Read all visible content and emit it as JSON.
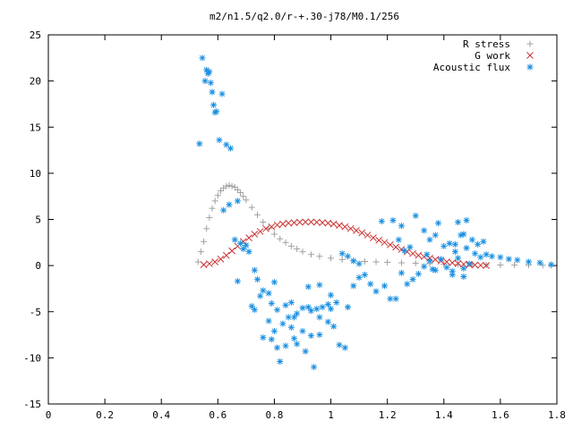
{
  "chart_data": {
    "type": "scatter",
    "title": "m2/n1.5/q2.0/r-+.30-j78/M0.1/256",
    "xlabel": "",
    "ylabel": "",
    "xlim": [
      0,
      1.8
    ],
    "ylim": [
      -15,
      25
    ],
    "x_ticks": [
      "0",
      "0.2",
      "0.4",
      "0.6",
      "0.8",
      "1",
      "1.2",
      "1.4",
      "1.6",
      "1.8"
    ],
    "y_ticks": [
      "-15",
      "-10",
      "-5",
      "0",
      "5",
      "10",
      "15",
      "20",
      "25"
    ],
    "grid": false,
    "legend_position": "top-right",
    "series": [
      {
        "name": "R stress",
        "marker": "plus",
        "color": "#a0a0a0",
        "points": [
          [
            0.53,
            0.4
          ],
          [
            0.54,
            1.5
          ],
          [
            0.55,
            2.6
          ],
          [
            0.56,
            4.0
          ],
          [
            0.57,
            5.2
          ],
          [
            0.58,
            6.2
          ],
          [
            0.59,
            7.0
          ],
          [
            0.6,
            7.6
          ],
          [
            0.61,
            8.1
          ],
          [
            0.62,
            8.4
          ],
          [
            0.63,
            8.6
          ],
          [
            0.64,
            8.7
          ],
          [
            0.65,
            8.6
          ],
          [
            0.66,
            8.5
          ],
          [
            0.67,
            8.2
          ],
          [
            0.68,
            7.9
          ],
          [
            0.69,
            7.5
          ],
          [
            0.7,
            7.1
          ],
          [
            0.72,
            6.3
          ],
          [
            0.74,
            5.5
          ],
          [
            0.76,
            4.7
          ],
          [
            0.78,
            4.0
          ],
          [
            0.8,
            3.4
          ],
          [
            0.82,
            2.9
          ],
          [
            0.84,
            2.5
          ],
          [
            0.86,
            2.1
          ],
          [
            0.88,
            1.8
          ],
          [
            0.9,
            1.5
          ],
          [
            0.93,
            1.2
          ],
          [
            0.96,
            1.0
          ],
          [
            1.0,
            0.8
          ],
          [
            1.04,
            0.65
          ],
          [
            1.08,
            0.55
          ],
          [
            1.12,
            0.45
          ],
          [
            1.16,
            0.4
          ],
          [
            1.2,
            0.35
          ],
          [
            1.25,
            0.3
          ],
          [
            1.3,
            0.25
          ],
          [
            1.35,
            0.2
          ],
          [
            1.4,
            0.15
          ],
          [
            1.45,
            0.12
          ],
          [
            1.5,
            0.1
          ],
          [
            1.55,
            0.08
          ],
          [
            1.6,
            0.06
          ],
          [
            1.65,
            0.05
          ],
          [
            1.7,
            0.04
          ],
          [
            1.75,
            0.03
          ],
          [
            1.78,
            0.02
          ]
        ]
      },
      {
        "name": "G work",
        "marker": "cross",
        "color": "#cc3333",
        "points": [
          [
            0.55,
            0.1
          ],
          [
            0.57,
            0.2
          ],
          [
            0.59,
            0.4
          ],
          [
            0.61,
            0.7
          ],
          [
            0.63,
            1.1
          ],
          [
            0.65,
            1.6
          ],
          [
            0.67,
            2.1
          ],
          [
            0.69,
            2.6
          ],
          [
            0.71,
            3.0
          ],
          [
            0.73,
            3.4
          ],
          [
            0.75,
            3.7
          ],
          [
            0.77,
            4.0
          ],
          [
            0.79,
            4.2
          ],
          [
            0.81,
            4.4
          ],
          [
            0.83,
            4.5
          ],
          [
            0.85,
            4.6
          ],
          [
            0.87,
            4.65
          ],
          [
            0.89,
            4.7
          ],
          [
            0.91,
            4.72
          ],
          [
            0.93,
            4.72
          ],
          [
            0.95,
            4.7
          ],
          [
            0.97,
            4.65
          ],
          [
            0.99,
            4.6
          ],
          [
            1.01,
            4.5
          ],
          [
            1.03,
            4.35
          ],
          [
            1.05,
            4.2
          ],
          [
            1.07,
            4.0
          ],
          [
            1.09,
            3.8
          ],
          [
            1.11,
            3.55
          ],
          [
            1.13,
            3.3
          ],
          [
            1.15,
            3.0
          ],
          [
            1.17,
            2.75
          ],
          [
            1.19,
            2.5
          ],
          [
            1.21,
            2.25
          ],
          [
            1.23,
            2.0
          ],
          [
            1.25,
            1.75
          ],
          [
            1.27,
            1.5
          ],
          [
            1.29,
            1.3
          ],
          [
            1.31,
            1.1
          ],
          [
            1.33,
            0.95
          ],
          [
            1.35,
            0.8
          ],
          [
            1.37,
            0.65
          ],
          [
            1.39,
            0.5
          ],
          [
            1.41,
            0.4
          ],
          [
            1.43,
            0.3
          ],
          [
            1.45,
            0.22
          ],
          [
            1.47,
            0.15
          ],
          [
            1.49,
            0.1
          ],
          [
            1.51,
            0.06
          ],
          [
            1.53,
            0.03
          ],
          [
            1.55,
            0.01
          ]
        ]
      },
      {
        "name": "Acoustic flux",
        "marker": "star",
        "color": "#1a8fe0",
        "points": [
          [
            0.535,
            13.2
          ],
          [
            0.545,
            22.5
          ],
          [
            0.555,
            20.0
          ],
          [
            0.56,
            21.2
          ],
          [
            0.565,
            20.8
          ],
          [
            0.57,
            21.0
          ],
          [
            0.575,
            19.8
          ],
          [
            0.58,
            18.8
          ],
          [
            0.585,
            17.4
          ],
          [
            0.59,
            16.6
          ],
          [
            0.595,
            16.7
          ],
          [
            0.605,
            13.6
          ],
          [
            0.615,
            18.6
          ],
          [
            0.63,
            13.1
          ],
          [
            0.645,
            12.7
          ],
          [
            0.62,
            6.0
          ],
          [
            0.64,
            6.6
          ],
          [
            0.67,
            7.0
          ],
          [
            0.66,
            2.8
          ],
          [
            0.68,
            2.4
          ],
          [
            0.69,
            1.8
          ],
          [
            0.7,
            2.2
          ],
          [
            0.71,
            1.5
          ],
          [
            0.73,
            -0.5
          ],
          [
            0.74,
            -1.5
          ],
          [
            0.67,
            -1.7
          ],
          [
            0.75,
            -3.3
          ],
          [
            0.76,
            -2.7
          ],
          [
            0.78,
            -3.0
          ],
          [
            0.72,
            -4.4
          ],
          [
            0.73,
            -4.8
          ],
          [
            0.8,
            -1.8
          ],
          [
            0.79,
            -4.1
          ],
          [
            0.81,
            -4.8
          ],
          [
            0.84,
            -4.3
          ],
          [
            0.86,
            -4.0
          ],
          [
            0.88,
            -5.2
          ],
          [
            0.78,
            -6.0
          ],
          [
            0.8,
            -7.1
          ],
          [
            0.83,
            -6.3
          ],
          [
            0.85,
            -5.6
          ],
          [
            0.86,
            -6.7
          ],
          [
            0.87,
            -5.6
          ],
          [
            0.9,
            -4.6
          ],
          [
            0.92,
            -4.5
          ],
          [
            0.93,
            -4.9
          ],
          [
            0.95,
            -4.7
          ],
          [
            0.97,
            -4.5
          ],
          [
            0.99,
            -4.2
          ],
          [
            1.0,
            -4.7
          ],
          [
            0.76,
            -7.8
          ],
          [
            0.79,
            -8.0
          ],
          [
            0.81,
            -8.9
          ],
          [
            0.84,
            -8.7
          ],
          [
            0.87,
            -7.9
          ],
          [
            0.9,
            -7.1
          ],
          [
            0.93,
            -7.6
          ],
          [
            0.96,
            -5.6
          ],
          [
            0.99,
            -6.1
          ],
          [
            1.01,
            -6.6
          ],
          [
            1.03,
            -8.6
          ],
          [
            0.82,
            -10.4
          ],
          [
            0.91,
            -9.3
          ],
          [
            0.94,
            -11.0
          ],
          [
            1.05,
            -8.9
          ],
          [
            0.96,
            -7.5
          ],
          [
            0.88,
            -8.5
          ],
          [
            0.92,
            -2.3
          ],
          [
            0.96,
            -2.1
          ],
          [
            1.0,
            -3.2
          ],
          [
            1.02,
            -4.0
          ],
          [
            1.06,
            -4.5
          ],
          [
            1.08,
            -2.2
          ],
          [
            1.1,
            -1.3
          ],
          [
            1.12,
            -1.0
          ],
          [
            1.04,
            1.3
          ],
          [
            1.06,
            1.0
          ],
          [
            1.08,
            0.5
          ],
          [
            1.1,
            0.2
          ],
          [
            1.14,
            -2.0
          ],
          [
            1.16,
            -2.8
          ],
          [
            1.19,
            -2.2
          ],
          [
            1.21,
            -3.6
          ],
          [
            1.23,
            -3.6
          ],
          [
            1.25,
            -0.8
          ],
          [
            1.27,
            -2.0
          ],
          [
            1.29,
            -1.5
          ],
          [
            1.31,
            -0.9
          ],
          [
            1.33,
            -0.1
          ],
          [
            1.35,
            0.5
          ],
          [
            1.37,
            -0.5
          ],
          [
            1.39,
            0.7
          ],
          [
            1.41,
            -0.2
          ],
          [
            1.43,
            -0.6
          ],
          [
            1.45,
            0.8
          ],
          [
            1.47,
            -0.3
          ],
          [
            1.49,
            0.2
          ],
          [
            1.51,
            1.3
          ],
          [
            1.53,
            0.9
          ],
          [
            1.55,
            1.2
          ],
          [
            1.57,
            1.0
          ],
          [
            1.6,
            0.9
          ],
          [
            1.63,
            0.7
          ],
          [
            1.66,
            0.6
          ],
          [
            1.7,
            0.4
          ],
          [
            1.74,
            0.3
          ],
          [
            1.78,
            0.1
          ],
          [
            1.18,
            4.8
          ],
          [
            1.22,
            4.9
          ],
          [
            1.25,
            4.3
          ],
          [
            1.3,
            5.4
          ],
          [
            1.33,
            3.8
          ],
          [
            1.35,
            2.8
          ],
          [
            1.37,
            3.3
          ],
          [
            1.4,
            2.1
          ],
          [
            1.42,
            2.4
          ],
          [
            1.44,
            2.3
          ],
          [
            1.38,
            4.6
          ],
          [
            1.45,
            4.7
          ],
          [
            1.48,
            4.9
          ],
          [
            1.47,
            3.4
          ],
          [
            1.5,
            2.8
          ],
          [
            1.44,
            1.5
          ],
          [
            1.46,
            3.3
          ],
          [
            1.48,
            1.9
          ],
          [
            1.52,
            2.3
          ],
          [
            1.54,
            2.6
          ],
          [
            1.43,
            -1.0
          ],
          [
            1.47,
            -1.2
          ],
          [
            1.36,
            -0.4
          ],
          [
            1.34,
            1.2
          ],
          [
            1.28,
            2.0
          ],
          [
            1.26,
            1.6
          ],
          [
            1.24,
            2.8
          ]
        ]
      }
    ]
  }
}
